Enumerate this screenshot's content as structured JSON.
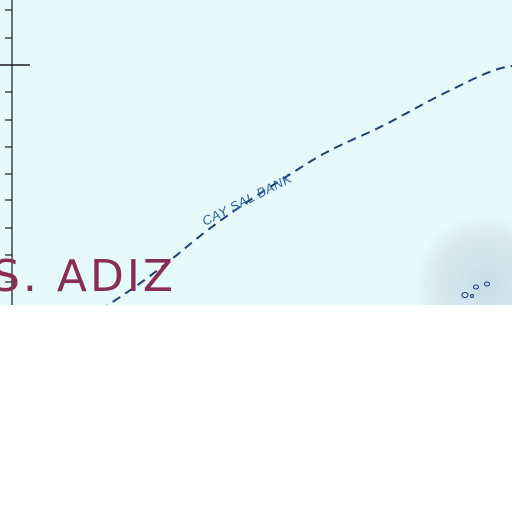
{
  "map": {
    "route_label": "CAY SAL BANK",
    "zone_label": "S. ADIZ",
    "colors": {
      "water": "#e6f9fb",
      "shoal": "#d6e6ee",
      "boundary_line": "#1e3f7a",
      "route_label": "#2b5fa8",
      "zone_label": "#8a2d55",
      "tick": "#1a1a1a"
    },
    "features": {
      "axis": "longitude-tick-scale",
      "boundary": "dashed-boundary-line",
      "island_group": "cay-sal-islets"
    }
  }
}
